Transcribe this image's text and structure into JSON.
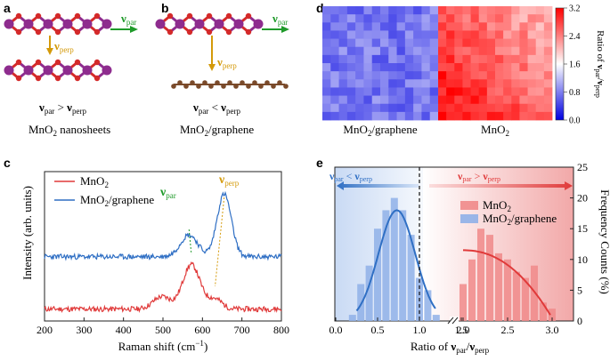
{
  "panel_labels": {
    "a": "a",
    "b": "b",
    "c": "c",
    "d": "d",
    "e": "e"
  },
  "panel_a": {
    "arrow_par": {
      "main": "ν",
      "sub": "par"
    },
    "arrow_perp": {
      "main": "ν",
      "sub": "perp"
    },
    "relation": {
      "left_main": "ν",
      "left_sub": "par",
      "op": " > ",
      "right_main": "ν",
      "right_sub": "perp"
    },
    "caption": {
      "main": "MnO",
      "sub": "2",
      "rest": " nanosheets"
    }
  },
  "panel_b": {
    "arrow_par": {
      "main": "ν",
      "sub": "par"
    },
    "arrow_perp": {
      "main": "ν",
      "sub": "perp"
    },
    "relation": {
      "left_main": "ν",
      "left_sub": "par",
      "op": " < ",
      "right_main": "ν",
      "right_sub": "perp"
    },
    "caption": {
      "main": "MnO",
      "sub": "2",
      "rest": "/graphene"
    }
  },
  "colors": {
    "mn": "#8e2c8e",
    "o": "#d42a2a",
    "c": "#7a4a2a",
    "green": "#1f9a2a",
    "gold": "#d49a0a",
    "red": "#e03a3a",
    "blue": "#2f6fc4"
  },
  "chart_data": [
    {
      "type": "heatmap",
      "panel": "d",
      "titles": [
        {
          "main": "MnO",
          "sub": "2",
          "rest": "/graphene"
        },
        {
          "main": "MnO",
          "sub": "2",
          "rest": ""
        }
      ],
      "colorbar": {
        "min": 0.0,
        "max": 3.2,
        "ticks": [
          "0.0",
          "0.8",
          "1.6",
          "2.4",
          "3.2"
        ],
        "label": {
          "pre": "Ratio of ",
          "a": "ν",
          "asub": "par",
          "mid": "/",
          "b": "ν",
          "bsub": "perp"
        }
      },
      "graphene_mean": 0.75,
      "mno2_mean": 2.5
    },
    {
      "type": "line",
      "panel": "c",
      "xlabel": "Raman shift (cm",
      "xlabel_sup": "−1",
      "xlabel_end": ")",
      "ylabel": "Intensity (arb. units)",
      "xlim": [
        200,
        800
      ],
      "xticks": [
        200,
        300,
        400,
        500,
        600,
        700,
        800
      ],
      "series": [
        {
          "name": "MnO",
          "sub": "2",
          "rest": "",
          "color": "#e03a3a",
          "peaks": [
            [
              497,
              0.25
            ],
            [
              572,
              0.9
            ],
            [
              632,
              0.2
            ]
          ]
        },
        {
          "name": "MnO",
          "sub": "2",
          "rest": "/graphene",
          "color": "#2f6fc4",
          "peaks": [
            [
              566,
              0.35
            ],
            [
              655,
              1.0
            ]
          ]
        }
      ],
      "annotations": [
        {
          "main": "ν",
          "sub": "par",
          "x": 566
        },
        {
          "main": "ν",
          "sub": "perp",
          "x": 655
        }
      ]
    },
    {
      "type": "bar",
      "panel": "e",
      "xlabel": {
        "pre": "Ratio of ",
        "a": "ν",
        "asub": "par",
        "mid": "/",
        "b": "ν",
        "bsub": "perp"
      },
      "ylabel": "Frequency Counts (%)",
      "ylim": [
        0,
        25
      ],
      "yticks": [
        0,
        5,
        10,
        15,
        20,
        25
      ],
      "xticks_left": [
        "0.0",
        "0.5",
        "1.0",
        "1.5"
      ],
      "xticks_right": [
        "2.0",
        "2.5",
        "3.0"
      ],
      "threshold": 1.0,
      "left_banner": {
        "a": "ν",
        "asub": "par",
        "op": " < ",
        "b": "ν",
        "bsub": "perp"
      },
      "right_banner": {
        "a": "ν",
        "asub": "par",
        "op": " > ",
        "b": "ν",
        "bsub": "perp"
      },
      "series": [
        {
          "name": "MnO",
          "sub": "2",
          "rest": "",
          "color": "#f08a8a",
          "bins": [
            2.0,
            2.1,
            2.2,
            2.3,
            2.4,
            2.5,
            2.6,
            2.7,
            2.8,
            2.9,
            3.0
          ],
          "values": [
            6,
            10,
            15,
            14,
            11,
            10,
            8,
            7,
            9,
            3,
            2
          ]
        },
        {
          "name": "MnO",
          "sub": "2",
          "rest": "/graphene",
          "color": "#8fb0e8",
          "bins": [
            0.2,
            0.3,
            0.4,
            0.5,
            0.6,
            0.7,
            0.8,
            0.9,
            1.0,
            1.1,
            1.2
          ],
          "values": [
            1,
            6,
            9,
            15,
            18,
            20,
            18,
            14,
            7,
            5,
            1
          ]
        }
      ],
      "fit_graphene_peak": {
        "x": 0.73,
        "y": 18
      },
      "fit_mno2_start": {
        "x": 2.0,
        "y": 11.5
      }
    }
  ]
}
